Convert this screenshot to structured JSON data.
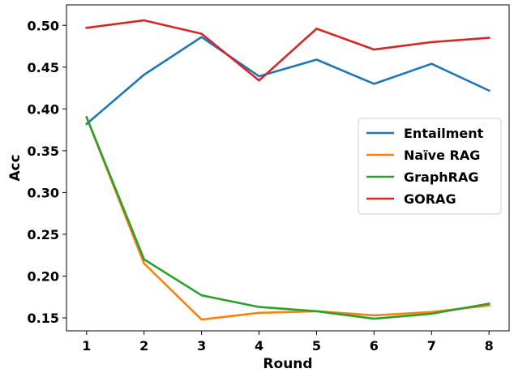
{
  "chart_data": {
    "type": "line",
    "title": "",
    "xlabel": "Round",
    "ylabel": "Acc",
    "x": [
      1,
      2,
      3,
      4,
      5,
      6,
      7,
      8
    ],
    "x_ticks": [
      "1",
      "2",
      "3",
      "4",
      "5",
      "6",
      "7",
      "8"
    ],
    "xlim": [
      0.65,
      8.35
    ],
    "ylim": [
      0.1345,
      0.5245
    ],
    "y_ticks": [
      "0.15",
      "0.20",
      "0.25",
      "0.30",
      "0.35",
      "0.40",
      "0.45",
      "0.50"
    ],
    "y_tick_values": [
      0.15,
      0.2,
      0.25,
      0.3,
      0.35,
      0.4,
      0.45,
      0.5
    ],
    "grid": false,
    "legend_position": "right",
    "series": [
      {
        "name": "Entailment",
        "color": "#1f77b4",
        "values": [
          0.382,
          0.441,
          0.486,
          0.439,
          0.459,
          0.43,
          0.454,
          0.422
        ]
      },
      {
        "name": "Naïve RAG",
        "color": "#ff7f0e",
        "values": [
          0.39,
          0.215,
          0.148,
          0.156,
          0.158,
          0.153,
          0.157,
          0.165
        ]
      },
      {
        "name": "GraphRAG",
        "color": "#2ca02c",
        "values": [
          0.39,
          0.22,
          0.177,
          0.163,
          0.158,
          0.149,
          0.155,
          0.167
        ]
      },
      {
        "name": "GORAG",
        "color": "#d62728",
        "values": [
          0.497,
          0.506,
          0.49,
          0.434,
          0.496,
          0.471,
          0.48,
          0.485
        ]
      }
    ]
  }
}
